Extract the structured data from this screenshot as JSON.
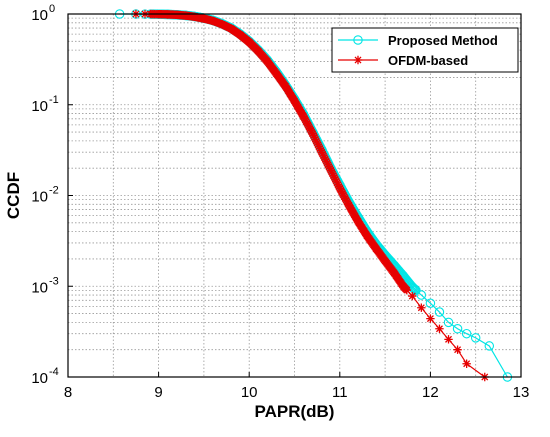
{
  "chart_data": {
    "type": "line",
    "title": "",
    "xlabel": "PAPR(dB)",
    "ylabel": "CCDF",
    "xlim": [
      8,
      13
    ],
    "ylim": [
      0.0001,
      1
    ],
    "yscale": "log",
    "grid": true,
    "legend_position": "top-right",
    "x_ticks": [
      "8",
      "9",
      "10",
      "11",
      "12",
      "13"
    ],
    "y_ticks": [
      {
        "base": "10",
        "exp": "0",
        "value": 1
      },
      {
        "base": "10",
        "exp": "-1",
        "value": 0.1
      },
      {
        "base": "10",
        "exp": "-2",
        "value": 0.01
      },
      {
        "base": "10",
        "exp": "-3",
        "value": 0.001
      },
      {
        "base": "10",
        "exp": "-4",
        "value": 0.0001
      }
    ],
    "series": [
      {
        "name": "Proposed Method",
        "color": "#00e5e5",
        "marker": "circle",
        "x": [
          8.57,
          8.75,
          8.85,
          9.0,
          9.1,
          9.2,
          9.3,
          9.4,
          9.5,
          9.6,
          9.7,
          9.8,
          9.9,
          10.0,
          10.1,
          10.2,
          10.3,
          10.4,
          10.5,
          10.6,
          10.7,
          10.8,
          10.9,
          11.0,
          11.1,
          11.2,
          11.3,
          11.4,
          11.5,
          11.6,
          11.7,
          11.8,
          11.9,
          12.0,
          12.1,
          12.2,
          12.3,
          12.4,
          12.5,
          12.65,
          12.85
        ],
        "y": [
          1.0,
          0.999,
          0.998,
          0.995,
          0.99,
          0.98,
          0.965,
          0.94,
          0.9,
          0.85,
          0.78,
          0.7,
          0.6,
          0.5,
          0.4,
          0.31,
          0.23,
          0.165,
          0.115,
          0.078,
          0.05,
          0.032,
          0.02,
          0.013,
          0.0085,
          0.0058,
          0.004,
          0.0029,
          0.0022,
          0.0017,
          0.0013,
          0.00098,
          0.0008,
          0.00065,
          0.00052,
          0.0004,
          0.00034,
          0.0003,
          0.00027,
          0.00022,
          0.0001
        ]
      },
      {
        "name": "OFDM-based",
        "color": "#e60000",
        "marker": "star",
        "x": [
          8.75,
          8.85,
          9.0,
          9.1,
          9.2,
          9.3,
          9.4,
          9.5,
          9.6,
          9.7,
          9.8,
          9.9,
          10.0,
          10.1,
          10.2,
          10.3,
          10.4,
          10.5,
          10.6,
          10.7,
          10.8,
          10.9,
          11.0,
          11.1,
          11.2,
          11.3,
          11.4,
          11.5,
          11.6,
          11.7,
          11.8,
          11.9,
          12.0,
          12.1,
          12.2,
          12.3,
          12.4,
          12.6
        ],
        "y": [
          1.0,
          0.999,
          0.995,
          0.99,
          0.98,
          0.96,
          0.93,
          0.89,
          0.84,
          0.77,
          0.69,
          0.59,
          0.49,
          0.39,
          0.3,
          0.22,
          0.16,
          0.11,
          0.074,
          0.048,
          0.03,
          0.019,
          0.012,
          0.0078,
          0.0052,
          0.0036,
          0.0026,
          0.0019,
          0.0014,
          0.001,
          0.00078,
          0.00058,
          0.00044,
          0.00034,
          0.00026,
          0.0002,
          0.00014,
          0.0001
        ]
      }
    ]
  }
}
